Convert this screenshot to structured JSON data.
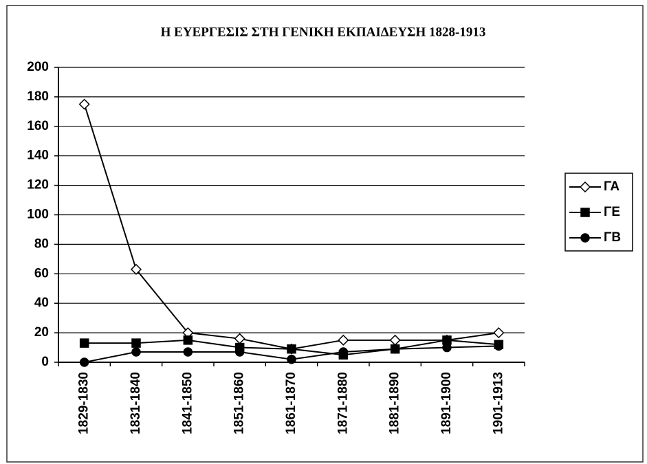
{
  "chart_data": {
    "type": "line",
    "title": "Η ΕΥΕΡΓΕΣΙΣ ΣΤΗ ΓΕΝΙΚΗ ΕΚΠΑΙΔΕΥΣΗ 1828-1913",
    "categories": [
      "1829-1830",
      "1831-1840",
      "1841-1850",
      "1851-1860",
      "1861-1870",
      "1871-1880",
      "1881-1890",
      "1891-1900",
      "1901-1913"
    ],
    "series": [
      {
        "name": "ΓΑ",
        "color": "#000000",
        "marker": "diamond",
        "values": [
          175,
          63,
          20,
          16,
          9,
          15,
          15,
          15,
          20
        ]
      },
      {
        "name": "ΓΕ",
        "color": "#000000",
        "marker": "square",
        "values": [
          13,
          13,
          15,
          10,
          9,
          5,
          9,
          15,
          12
        ]
      },
      {
        "name": "ΓΒ",
        "color": "#000000",
        "marker": "circle",
        "values": [
          0,
          7,
          7,
          7,
          2,
          7,
          9,
          10,
          11
        ]
      }
    ],
    "ylim": [
      0,
      200
    ],
    "yticks": [
      0,
      20,
      40,
      60,
      80,
      100,
      120,
      140,
      160,
      180,
      200
    ],
    "grid": true,
    "legend": "right"
  }
}
